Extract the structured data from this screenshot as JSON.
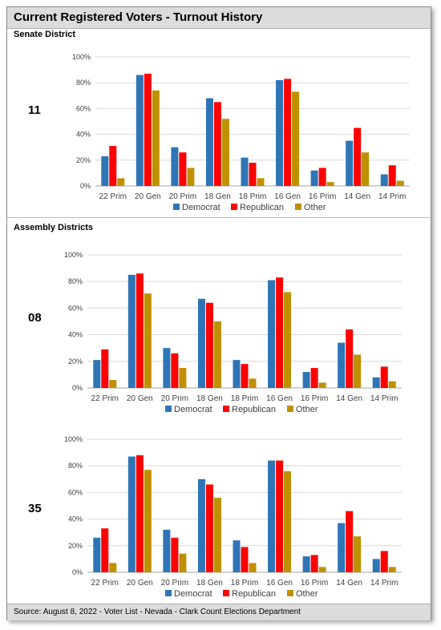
{
  "title": "Current Registered Voters - Turnout History",
  "sections": {
    "senate": "Senate District",
    "assembly": "Assembly Districts"
  },
  "districts": [
    "11",
    "08",
    "35"
  ],
  "footer": "Source: August 8, 2022 - Voter List - Nevada - Clark Count Elections Department",
  "colors": {
    "Democrat": "#2e75b6",
    "Republican": "#ff0000",
    "Other": "#bf9000"
  },
  "chart_data": [
    {
      "type": "bar",
      "district": "11",
      "categories": [
        "22 Prim",
        "20 Gen",
        "20 Prim",
        "18 Gen",
        "18 Prim",
        "16 Gen",
        "16 Prim",
        "14 Gen",
        "14 Prim"
      ],
      "series": [
        {
          "name": "Democrat",
          "values": [
            23,
            86,
            30,
            68,
            22,
            82,
            12,
            35,
            9
          ]
        },
        {
          "name": "Republican",
          "values": [
            31,
            87,
            26,
            65,
            18,
            83,
            14,
            45,
            16
          ]
        },
        {
          "name": "Other",
          "values": [
            6,
            74,
            14,
            52,
            6,
            73,
            3,
            26,
            4
          ]
        }
      ],
      "yticks": [
        "0%",
        "20%",
        "40%",
        "60%",
        "80%",
        "100%"
      ],
      "ylim": [
        0,
        100
      ],
      "legend": "bottom"
    },
    {
      "type": "bar",
      "district": "08",
      "categories": [
        "22 Prim",
        "20 Gen",
        "20 Prim",
        "18 Gen",
        "18 Prim",
        "16 Gen",
        "16 Prim",
        "14 Gen",
        "14 Prim"
      ],
      "series": [
        {
          "name": "Democrat",
          "values": [
            21,
            85,
            30,
            67,
            21,
            81,
            12,
            34,
            8
          ]
        },
        {
          "name": "Republican",
          "values": [
            29,
            86,
            26,
            64,
            18,
            83,
            15,
            44,
            16
          ]
        },
        {
          "name": "Other",
          "values": [
            6,
            71,
            15,
            50,
            7,
            72,
            4,
            25,
            5
          ]
        }
      ],
      "yticks": [
        "0%",
        "20%",
        "40%",
        "60%",
        "80%",
        "100%"
      ],
      "ylim": [
        0,
        100
      ],
      "legend": "bottom"
    },
    {
      "type": "bar",
      "district": "35",
      "categories": [
        "22 Prim",
        "20 Gen",
        "20 Prim",
        "18 Gen",
        "18 Prim",
        "16 Gen",
        "16 Prim",
        "14 Gen",
        "14 Prim"
      ],
      "series": [
        {
          "name": "Democrat",
          "values": [
            26,
            87,
            32,
            70,
            24,
            84,
            12,
            37,
            10
          ]
        },
        {
          "name": "Republican",
          "values": [
            33,
            88,
            26,
            66,
            19,
            84,
            13,
            46,
            16
          ]
        },
        {
          "name": "Other",
          "values": [
            7,
            77,
            14,
            56,
            7,
            76,
            4,
            27,
            4
          ]
        }
      ],
      "yticks": [
        "0%",
        "20%",
        "40%",
        "60%",
        "80%",
        "100%"
      ],
      "ylim": [
        0,
        100
      ],
      "legend": "bottom"
    }
  ]
}
